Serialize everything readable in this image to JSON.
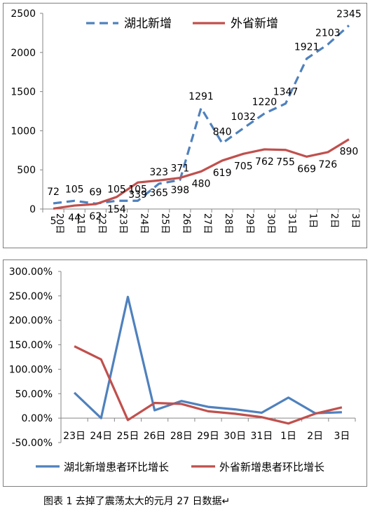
{
  "caption": "图表 1 去掉了震荡太大的元月 27 日数据↵",
  "colors": {
    "blue": "#4f81bd",
    "red": "#c0504d",
    "grid": "#868686"
  },
  "chart_data": [
    {
      "type": "line",
      "title": "",
      "legend_position": "top",
      "categories": [
        "20日",
        "21日",
        "22日",
        "23日",
        "24日",
        "25日",
        "26日",
        "27日",
        "28日",
        "29日",
        "30日",
        "31日",
        "1日",
        "2日",
        "3日"
      ],
      "series": [
        {
          "name": "湖北新增",
          "style": "dashed",
          "color": "#4f81bd",
          "values": [
            72,
            105,
            69,
            105,
            105,
            323,
            371,
            1291,
            840,
            1032,
            1220,
            1347,
            1921,
            2103,
            2345
          ],
          "labels": [
            "72",
            "105",
            "69",
            "105",
            "105",
            "323",
            "371",
            "1291",
            "840",
            "1032",
            "1220",
            "1347",
            "1921",
            "2103",
            "2345"
          ]
        },
        {
          "name": "外省新增",
          "style": "solid",
          "color": "#c0504d",
          "values": [
            5,
            44,
            62,
            154,
            339,
            365,
            398,
            480,
            619,
            705,
            762,
            755,
            669,
            726,
            890
          ],
          "labels": [
            "5",
            "44",
            "62",
            "154",
            "339",
            "365",
            "398",
            "480",
            "619",
            "705",
            "762",
            "755",
            "669",
            "726",
            "890"
          ]
        }
      ],
      "yticks": [
        "0",
        "500",
        "1000",
        "1500",
        "2000",
        "2500"
      ],
      "ylim": [
        0,
        2500
      ],
      "grid": false
    },
    {
      "type": "line",
      "title": "",
      "legend_position": "bottom",
      "categories": [
        "23日",
        "24日",
        "25日",
        "26日",
        "28日",
        "29日",
        "30日",
        "31日",
        "1日",
        "2日",
        "3日"
      ],
      "series": [
        {
          "name": "湖北新增患者环比增长",
          "color": "#4f81bd",
          "values": [
            52,
            0,
            248,
            16,
            35,
            23,
            18,
            11,
            42,
            10,
            12
          ]
        },
        {
          "name": "外省新增患者环比增长",
          "color": "#c0504d",
          "values": [
            147,
            120,
            -4,
            31,
            29,
            14,
            9,
            2,
            -11,
            9,
            22
          ]
        }
      ],
      "yticks": [
        "-50.00%",
        "0.00%",
        "50.00%",
        "100.00%",
        "150.00%",
        "200.00%",
        "250.00%",
        "300.00%"
      ],
      "ylim": [
        -50,
        300
      ],
      "unit": "%",
      "grid": false
    }
  ]
}
